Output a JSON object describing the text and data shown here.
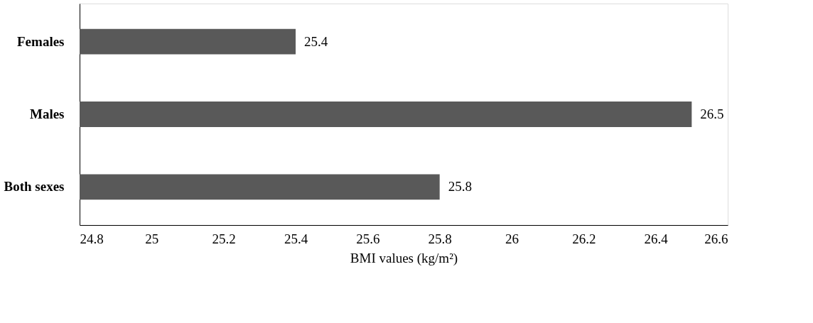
{
  "chart_data": {
    "type": "bar",
    "orientation": "horizontal",
    "xlabel": "BMI values (kg/m²)",
    "categories": [
      "Females",
      "Males",
      "Both sexes"
    ],
    "values": [
      25.4,
      26.5,
      25.8
    ],
    "color": "#595959",
    "xlim": [
      24.8,
      26.6
    ],
    "xticks": [
      24.8,
      25,
      25.2,
      25.4,
      25.6,
      25.8,
      26,
      26.2,
      26.4,
      26.6
    ],
    "data_labels": true,
    "grid": false
  }
}
